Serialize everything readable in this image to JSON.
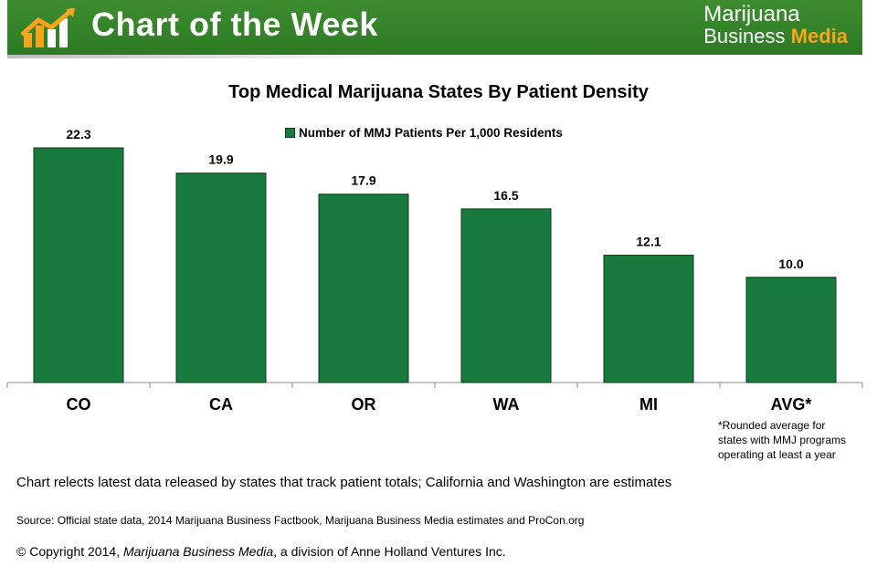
{
  "banner": {
    "title": "Chart of the Week",
    "brand_line1": "Marijuana",
    "brand_line2_plain": "Business ",
    "brand_line2_accent": "Media",
    "accent_color": "#f7a51c",
    "green": "#2d7a24"
  },
  "chart_data": {
    "type": "bar",
    "title": "Top Medical Marijuana States By Patient Density",
    "categories": [
      "CO",
      "CA",
      "OR",
      "WA",
      "MI",
      "AVG*"
    ],
    "series": [
      {
        "name": "Number of MMJ Patients Per 1,000 Residents",
        "values": [
          22.3,
          19.9,
          17.9,
          16.5,
          12.1,
          10.0
        ],
        "labels": [
          "22.3",
          "19.9",
          "17.9",
          "16.5",
          "12.1",
          "10.0"
        ],
        "color": "#187a3c"
      }
    ],
    "ylim": [
      0,
      22.3
    ],
    "legend": "top-center",
    "grid": false
  },
  "footnote": [
    "*Rounded average for",
    "states with MMJ programs",
    "operating at least a year"
  ],
  "note": "Chart relects latest data released by states that track patient totals; California and Washington are estimates",
  "source": "Source: Official state data, 2014 Marijuana Business Factbook, Marijuana Business Media estimates and ProCon.org",
  "copyright": {
    "prefix": "© Copyright 2014, ",
    "italic": "Marijuana Business Media",
    "suffix": ", a division of Anne Holland Ventures Inc."
  }
}
